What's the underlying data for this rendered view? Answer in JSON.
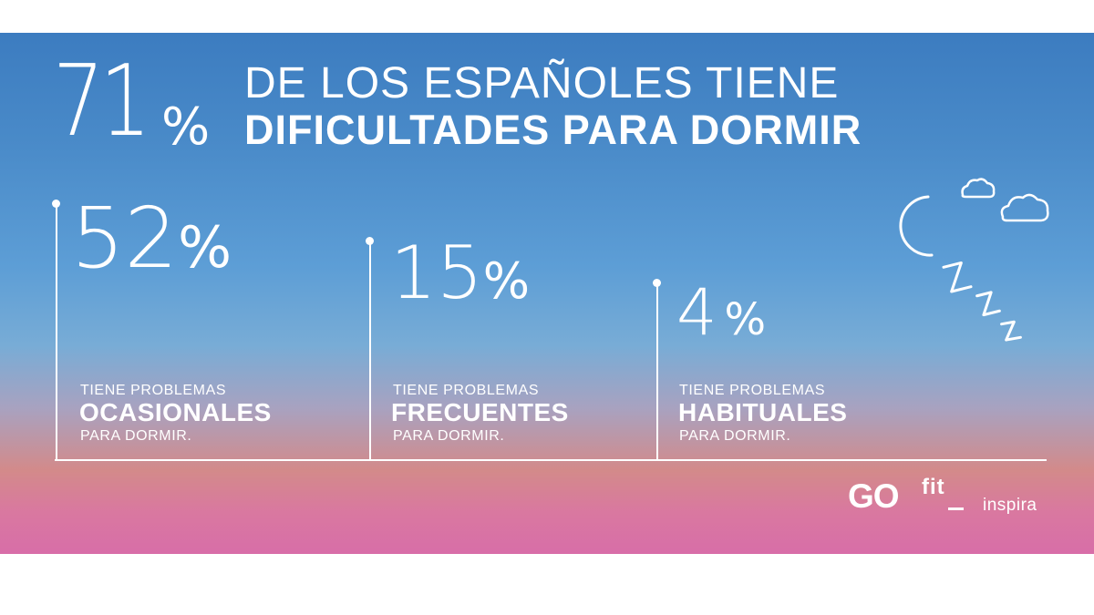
{
  "headline": {
    "number": "71",
    "unit": "%",
    "line1": "DE LOS ESPAÑOLES TIENE",
    "line2": "DIFICULTADES PARA DORMIR"
  },
  "stats": [
    {
      "number": "52",
      "unit": "%",
      "pre": "TIENE PROBLEMAS",
      "key": "OCASIONALES",
      "post": "PARA DORMIR."
    },
    {
      "number": "15",
      "unit": "%",
      "pre": "TIENE PROBLEMAS",
      "key": "FRECUENTES",
      "post": "PARA DORMIR."
    },
    {
      "number": "4",
      "unit": "%",
      "pre": "TIENE PROBLEMAS",
      "key": "HABITUALES",
      "post": "PARA DORMIR."
    }
  ],
  "sleep_icon": {
    "moon": "crescent-moon-icon",
    "clouds": "cloud-icon",
    "zzz": [
      "Z",
      "Z",
      "Z"
    ]
  },
  "brand": {
    "go": "GO",
    "fit": "fit",
    "tagline": "inspira"
  },
  "colors": {
    "sky_top": "#3c7cc0",
    "sky_mid": "#5d9ed6",
    "sunset_pink": "#d86ea8",
    "text": "#ffffff"
  }
}
